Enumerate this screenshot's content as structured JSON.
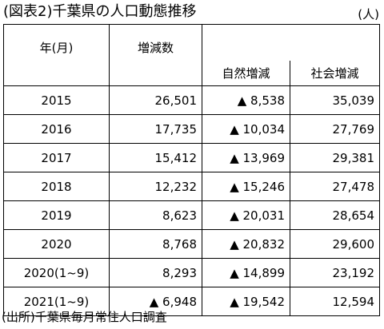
{
  "title": "(図表2)千葉県の人口動態推移",
  "unit": "(人)",
  "headers": {
    "year": "年(月)",
    "change": "増減数",
    "natural": "自然増減",
    "social": "社会増減"
  },
  "rows": [
    {
      "year": "2015",
      "change": "26,501",
      "natural": "▲ 8,538",
      "social": "35,039"
    },
    {
      "year": "2016",
      "change": "17,735",
      "natural": "▲ 10,034",
      "social": "27,769"
    },
    {
      "year": "2017",
      "change": "15,412",
      "natural": "▲ 13,969",
      "social": "29,381"
    },
    {
      "year": "2018",
      "change": "12,232",
      "natural": "▲ 15,246",
      "social": "27,478"
    },
    {
      "year": "2019",
      "change": "8,623",
      "natural": "▲ 20,031",
      "social": "28,654"
    },
    {
      "year": "2020",
      "change": "8,768",
      "natural": "▲ 20,832",
      "social": "29,600"
    },
    {
      "year": "2020(1~9)",
      "change": "8,293",
      "natural": "▲ 14,899",
      "social": "23,192"
    },
    {
      "year": "2021(1~9)",
      "change": "▲ 6,948",
      "natural": "▲ 19,542",
      "social": "12,594"
    }
  ],
  "source": "(出所)千葉県毎月常住人口調査"
}
